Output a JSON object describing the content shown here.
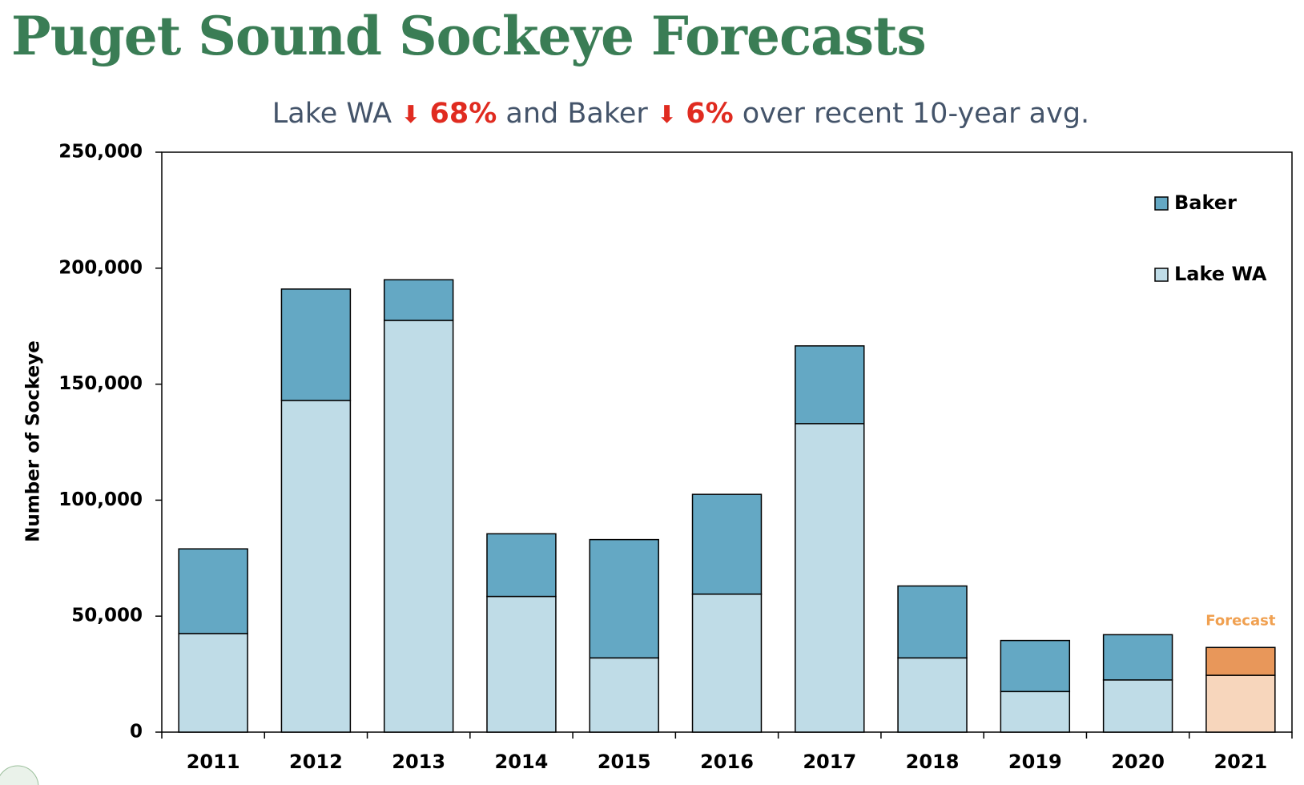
{
  "chart_data": {
    "type": "stacked_bar",
    "title": "Puget Sound Sockeye Forecasts",
    "subtitle": [
      "Lake WA",
      "68%",
      "and Baker",
      "6%",
      "over recent 10-year avg."
    ],
    "ylabel": "Number of Sockeye",
    "categories": [
      "2011",
      "2012",
      "2013",
      "2014",
      "2015",
      "2016",
      "2017",
      "2018",
      "2019",
      "2020",
      "2021"
    ],
    "series": [
      {
        "name": "Lake WA",
        "color": "#bfdce7",
        "forecast_color": "#f7d6bc",
        "values": [
          42500,
          143000,
          177500,
          58500,
          32000,
          59500,
          133000,
          32000,
          17500,
          22500,
          24500
        ]
      },
      {
        "name": "Baker",
        "color": "#64a8c4",
        "forecast_color": "#e8975a",
        "values": [
          36500,
          48000,
          17500,
          27000,
          51000,
          43000,
          33500,
          31000,
          22000,
          19500,
          12000
        ]
      }
    ],
    "forecast_category": "2021",
    "forecast_label": "Forecast",
    "forecast_label_color": "#f0a050",
    "ylim": [
      0,
      250000
    ],
    "yticks": [
      0,
      {
        "value": 50000,
        "label": "50,000"
      },
      {
        "value": 100000,
        "label": "100,000"
      },
      {
        "value": 150000,
        "label": "150,000"
      },
      {
        "value": 200000,
        "label": "200,000"
      },
      {
        "value": 250000,
        "label": "250,000"
      }
    ],
    "legend": "top-right"
  }
}
